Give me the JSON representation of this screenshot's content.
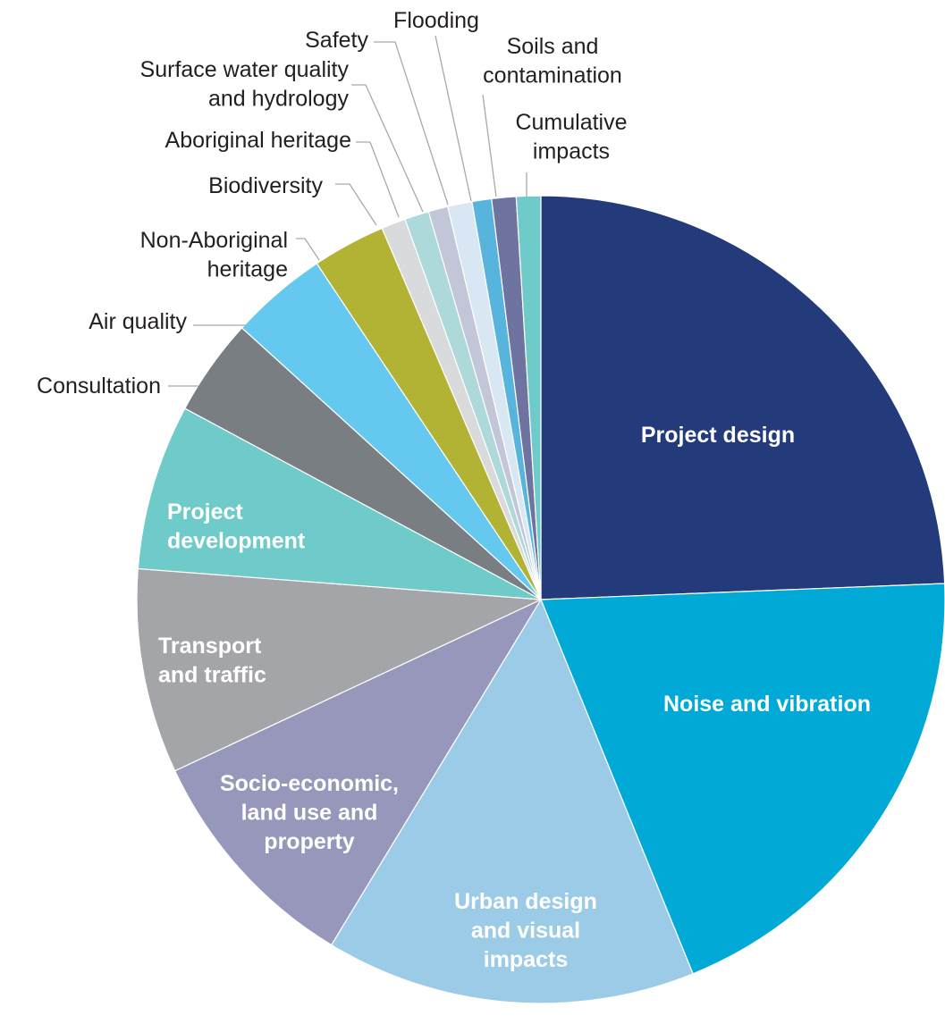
{
  "chart_data": {
    "type": "pie",
    "title": "",
    "slices": [
      {
        "name": "Project design",
        "value": 25.0,
        "color": "#233b7b",
        "label_lines": [
          "Project design"
        ]
      },
      {
        "name": "Noise and vibration",
        "value": 20.0,
        "color": "#00a9d6",
        "label_lines": [
          "Noise and vibration"
        ]
      },
      {
        "name": "Urban design and visual impacts",
        "value": 15.2,
        "color": "#9ccbe8",
        "label_lines": [
          "Urban design",
          "and visual",
          "impacts"
        ]
      },
      {
        "name": "Socio-economic, land use and property",
        "value": 9.6,
        "color": "#9697ba",
        "label_lines": [
          "Socio-economic,",
          "land use and",
          "property"
        ]
      },
      {
        "name": "Transport and traffic",
        "value": 8.4,
        "color": "#a4a5a9",
        "label_lines": [
          "Transport",
          "and traffic"
        ]
      },
      {
        "name": "Project development",
        "value": 6.8,
        "color": "#6fcaca",
        "label_lines": [
          "Project",
          "development"
        ]
      },
      {
        "name": "Consultation",
        "value": 4.0,
        "color": "#797e82",
        "label_lines": [
          "Consultation"
        ]
      },
      {
        "name": "Air quality",
        "value": 4.0,
        "color": "#65c9ef",
        "label_lines": [
          "Air quality"
        ]
      },
      {
        "name": "Non-Aboriginal heritage",
        "value": 3.0,
        "color": "#b2b234",
        "label_lines": [
          "Non-Aboriginal",
          "heritage"
        ]
      },
      {
        "name": "Biodiversity",
        "value": 1.0,
        "color": "#d9dadb",
        "label_lines": [
          "Biodiversity"
        ]
      },
      {
        "name": "Aboriginal heritage",
        "value": 1.0,
        "color": "#add9db",
        "label_lines": [
          "Aboriginal heritage"
        ]
      },
      {
        "name": "Surface water quality and hydrology",
        "value": 0.8,
        "color": "#c3c5d8",
        "label_lines": [
          "Surface water quality",
          "and hydrology"
        ]
      },
      {
        "name": "Safety",
        "value": 1.0,
        "color": "#d8e7f3",
        "label_lines": [
          "Safety"
        ]
      },
      {
        "name": "Flooding",
        "value": 0.8,
        "color": "#57b4dc",
        "label_lines": [
          "Flooding"
        ]
      },
      {
        "name": "Soils and contamination",
        "value": 1.0,
        "color": "#6f739f",
        "label_lines": [
          "Soils and",
          "contamination"
        ]
      },
      {
        "name": "Cumulative impacts",
        "value": 1.0,
        "color": "#6fcaca",
        "label_lines": [
          "Cumulative",
          "impacts"
        ]
      }
    ]
  }
}
